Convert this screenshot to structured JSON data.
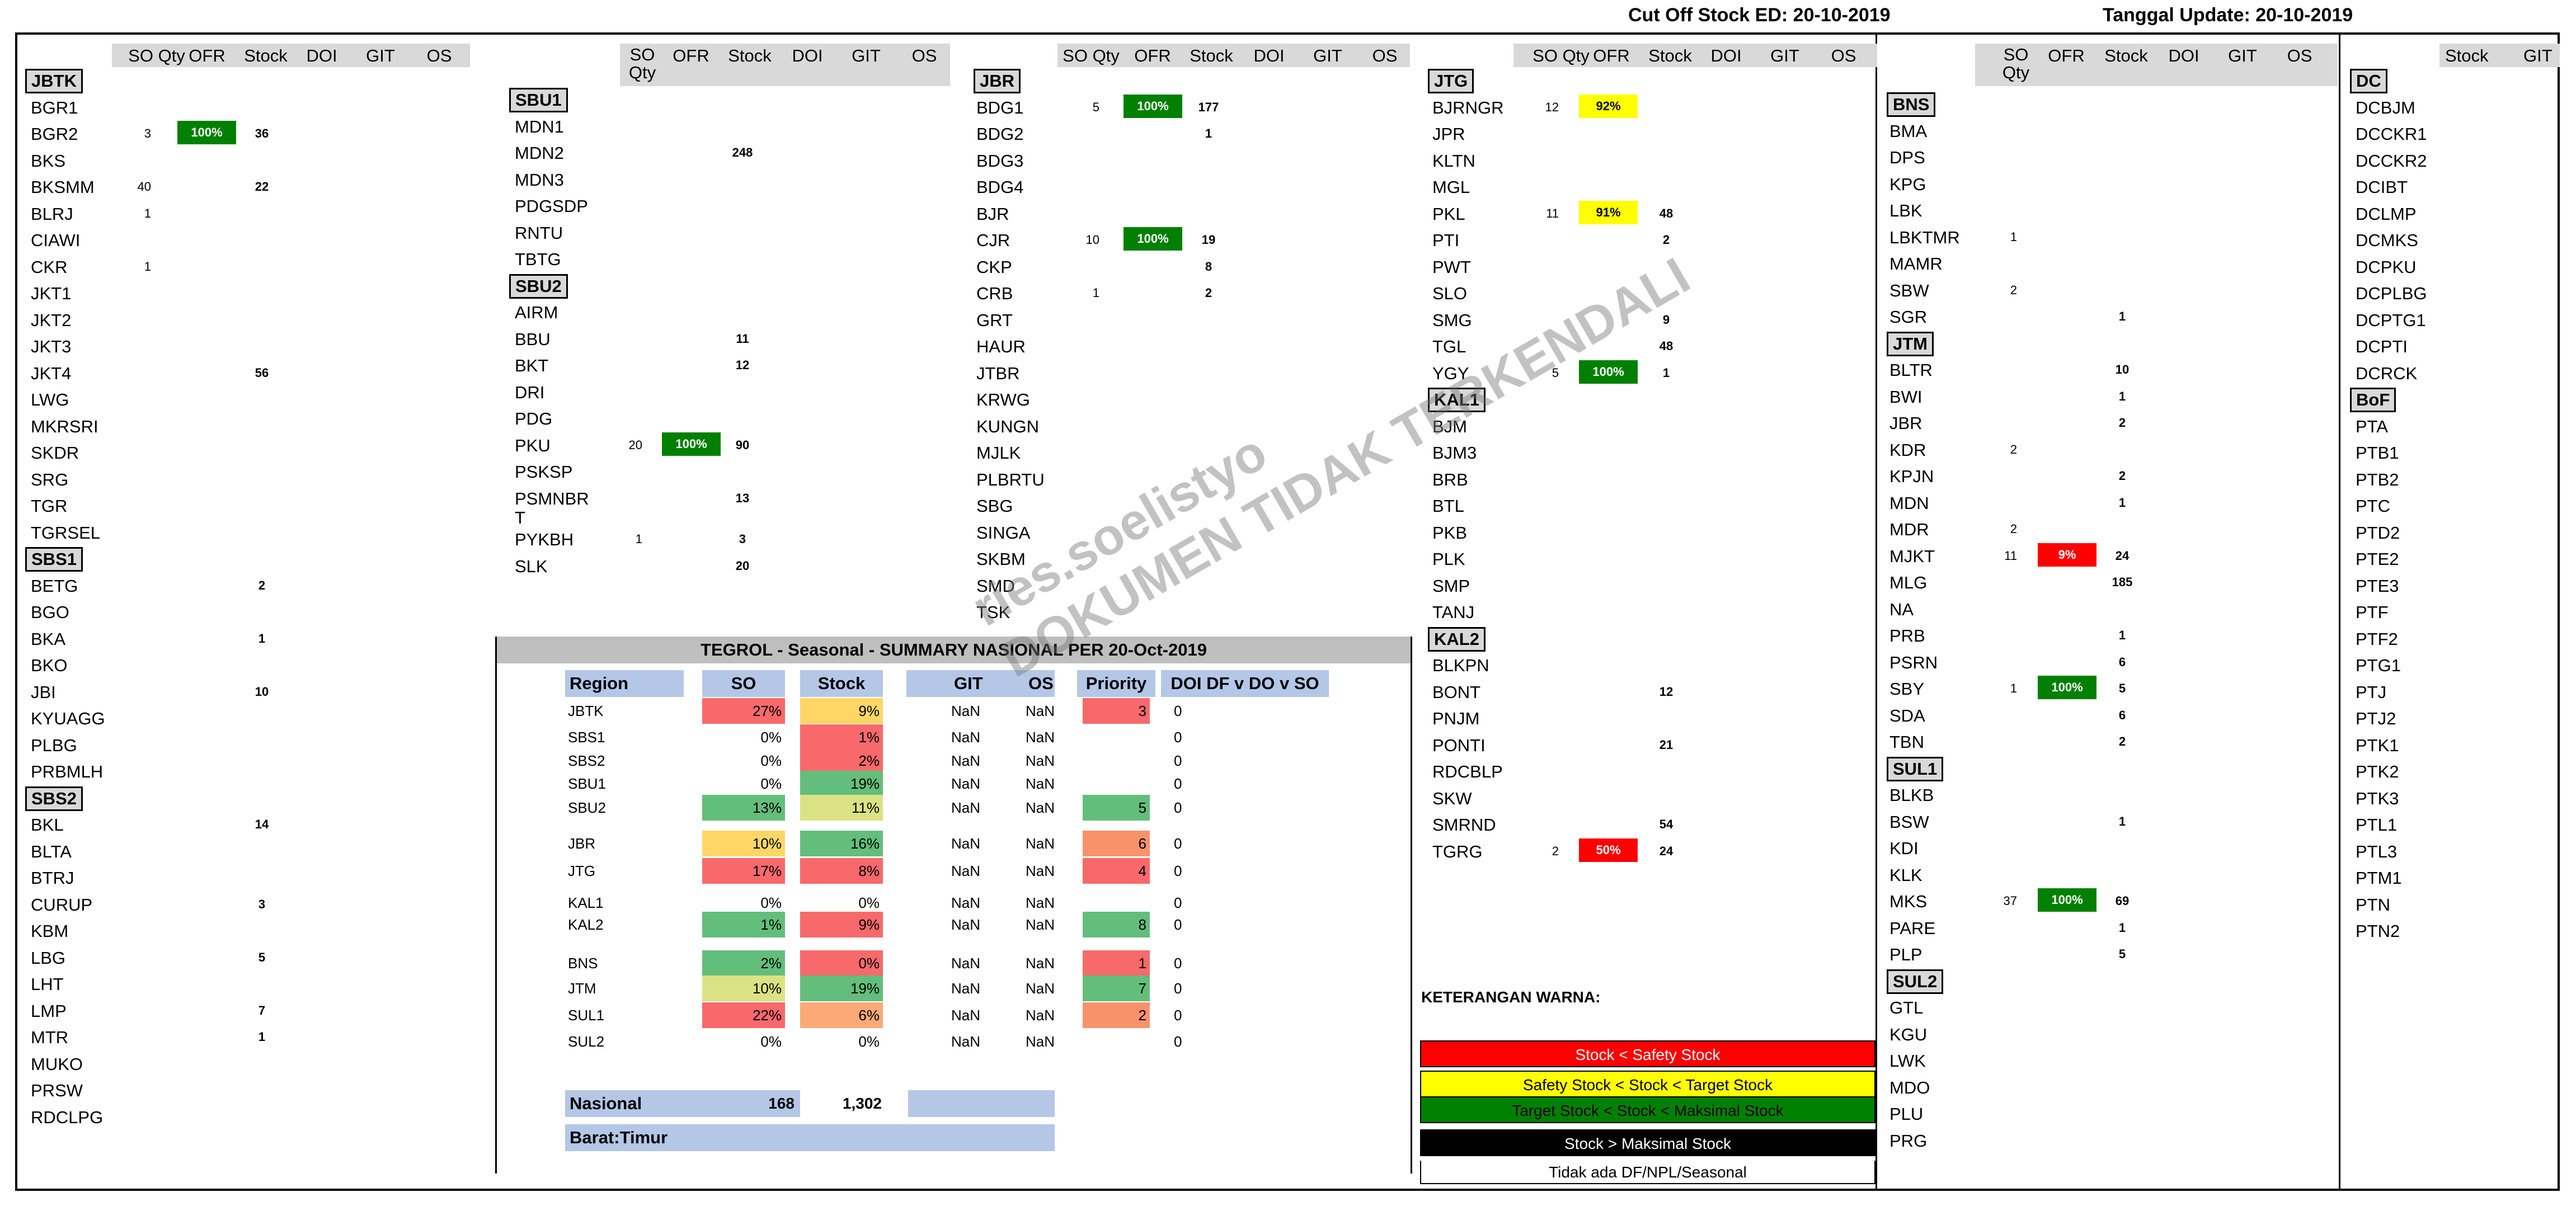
{
  "header": {
    "cutoff": "Cut Off Stock ED: 20-10-2019",
    "update": "Tanggal Update: 20-10-2019"
  },
  "columns": {
    "so_qty": "SO Qty",
    "so": "SO",
    "qty": "Qty",
    "ofr": "OFR",
    "stock": "Stock",
    "doi": "DOI",
    "git": "GIT",
    "os": "OS"
  },
  "colors": {
    "green": "#008000",
    "yellow": "#ffff00",
    "red": "#ff0000",
    "black": "#000000"
  },
  "panel1": {
    "regions": [
      {
        "name": "JBTK",
        "rows": [
          {
            "code": "BGR1"
          },
          {
            "code": "BGR2",
            "so": "3",
            "ofr": "100%",
            "ofr_color": "green",
            "stock": "36"
          },
          {
            "code": "BKS"
          },
          {
            "code": "BKSMM",
            "so": "40",
            "stock": "22"
          },
          {
            "code": "BLRJ",
            "so": "1"
          },
          {
            "code": "CIAWI"
          },
          {
            "code": "CKR",
            "so": "1"
          },
          {
            "code": "JKT1"
          },
          {
            "code": "JKT2"
          },
          {
            "code": "JKT3"
          },
          {
            "code": "JKT4",
            "stock": "56"
          },
          {
            "code": "LWG"
          },
          {
            "code": "MKRSRI"
          },
          {
            "code": "SKDR"
          },
          {
            "code": "SRG"
          },
          {
            "code": "TGR"
          },
          {
            "code": "TGRSEL"
          }
        ]
      },
      {
        "name": "SBS1",
        "rows": [
          {
            "code": "BETG",
            "stock": "2"
          },
          {
            "code": "BGO"
          },
          {
            "code": "BKA",
            "stock": "1"
          },
          {
            "code": "BKO"
          },
          {
            "code": "JBI",
            "stock": "10"
          },
          {
            "code": "KYUAGG"
          },
          {
            "code": "PLBG"
          },
          {
            "code": "PRBMLH"
          }
        ]
      },
      {
        "name": "SBS2",
        "rows": [
          {
            "code": "BKL",
            "stock": "14"
          },
          {
            "code": "BLTA"
          },
          {
            "code": "BTRJ"
          },
          {
            "code": "CURUP",
            "stock": "3"
          },
          {
            "code": "KBM"
          },
          {
            "code": "LBG",
            "stock": "5"
          },
          {
            "code": "LHT"
          },
          {
            "code": "LMP",
            "stock": "7"
          },
          {
            "code": "MTR",
            "stock": "1"
          },
          {
            "code": "MUKO"
          },
          {
            "code": "PRSW"
          },
          {
            "code": "RDCLPG"
          }
        ]
      }
    ]
  },
  "panel2": {
    "regions": [
      {
        "name": "SBU1",
        "rows": [
          {
            "code": "MDN1"
          },
          {
            "code": "MDN2",
            "stock": "248"
          },
          {
            "code": "MDN3"
          },
          {
            "code": "PDGSDP"
          },
          {
            "code": "RNTU"
          },
          {
            "code": "TBTG"
          }
        ]
      },
      {
        "name": "SBU2",
        "rows": [
          {
            "code": "AIRM"
          },
          {
            "code": "BBU",
            "stock": "11"
          },
          {
            "code": "BKT",
            "stock": "12"
          },
          {
            "code": "DRI"
          },
          {
            "code": "PDG"
          },
          {
            "code": "PKU",
            "so": "20",
            "ofr": "100%",
            "ofr_color": "green",
            "stock": "90"
          },
          {
            "code": "PSKSP"
          },
          {
            "code": "PSMNBR",
            "code2": "T",
            "stock": "13"
          },
          {
            "code": "PYKBH",
            "so": "1",
            "stock": "3"
          },
          {
            "code": "SLK",
            "stock": "20"
          }
        ]
      }
    ]
  },
  "panel3": {
    "regions": [
      {
        "name": "JBR",
        "rows": [
          {
            "code": "BDG1",
            "so": "5",
            "ofr": "100%",
            "ofr_color": "green",
            "stock": "177"
          },
          {
            "code": "BDG2",
            "stock": "1"
          },
          {
            "code": "BDG3"
          },
          {
            "code": "BDG4"
          },
          {
            "code": "BJR"
          },
          {
            "code": "CJR",
            "so": "10",
            "ofr": "100%",
            "ofr_color": "green",
            "stock": "19"
          },
          {
            "code": "CKP",
            "stock": "8"
          },
          {
            "code": "CRB",
            "so": "1",
            "stock": "2"
          },
          {
            "code": "GRT"
          },
          {
            "code": "HAUR"
          },
          {
            "code": "JTBR"
          },
          {
            "code": "KRWG"
          },
          {
            "code": "KUNGN"
          },
          {
            "code": "MJLK"
          },
          {
            "code": "PLBRTU"
          },
          {
            "code": "SBG"
          },
          {
            "code": "SINGA"
          },
          {
            "code": "SKBM"
          },
          {
            "code": "SMD"
          },
          {
            "code": "TSK"
          }
        ]
      }
    ]
  },
  "panel4": {
    "regions": [
      {
        "name": "JTG",
        "rows": [
          {
            "code": "BJRNGR",
            "so": "12",
            "ofr": "92%",
            "ofr_color": "yellow"
          },
          {
            "code": "JPR"
          },
          {
            "code": "KLTN"
          },
          {
            "code": "MGL"
          },
          {
            "code": "PKL",
            "so": "11",
            "ofr": "91%",
            "ofr_color": "yellow",
            "stock": "48"
          },
          {
            "code": "PTI",
            "stock": "2"
          },
          {
            "code": "PWT"
          },
          {
            "code": "SLO"
          },
          {
            "code": "SMG",
            "stock": "9"
          },
          {
            "code": "TGL",
            "stock": "48"
          },
          {
            "code": "YGY",
            "so": "5",
            "ofr": "100%",
            "ofr_color": "green",
            "stock": "1"
          }
        ]
      },
      {
        "name": "KAL1",
        "rows": [
          {
            "code": "BJM"
          },
          {
            "code": "BJM3"
          },
          {
            "code": "BRB"
          },
          {
            "code": "BTL"
          },
          {
            "code": "PKB"
          },
          {
            "code": "PLK"
          },
          {
            "code": "SMP"
          },
          {
            "code": "TANJ"
          }
        ]
      },
      {
        "name": "KAL2",
        "rows": [
          {
            "code": "BLKPN"
          },
          {
            "code": "BONT",
            "stock": "12"
          },
          {
            "code": "PNJM"
          },
          {
            "code": "PONTI",
            "stock": "21"
          },
          {
            "code": "RDCBLP"
          },
          {
            "code": "SKW"
          },
          {
            "code": "SMRND",
            "stock": "54"
          },
          {
            "code": "TGRG",
            "so": "2",
            "ofr": "50%",
            "ofr_color": "red",
            "stock": "24"
          }
        ]
      }
    ]
  },
  "panel5": {
    "regions": [
      {
        "name": "BNS",
        "rows": [
          {
            "code": "BMA"
          },
          {
            "code": "DPS"
          },
          {
            "code": "KPG"
          },
          {
            "code": "LBK"
          },
          {
            "code": "LBKTMR",
            "so": "1"
          },
          {
            "code": "MAMR"
          },
          {
            "code": "SBW",
            "so": "2"
          },
          {
            "code": "SGR",
            "stock": "1"
          }
        ]
      },
      {
        "name": "JTM",
        "rows": [
          {
            "code": "BLTR",
            "stock": "10"
          },
          {
            "code": "BWI",
            "stock": "1"
          },
          {
            "code": "JBR",
            "stock": "2"
          },
          {
            "code": "KDR",
            "so": "2"
          },
          {
            "code": "KPJN",
            "stock": "2"
          },
          {
            "code": "MDN",
            "stock": "1"
          },
          {
            "code": "MDR",
            "so": "2"
          },
          {
            "code": "MJKT",
            "so": "11",
            "ofr": "9%",
            "ofr_color": "red",
            "stock": "24"
          },
          {
            "code": "MLG",
            "stock": "185"
          },
          {
            "code": "NA"
          },
          {
            "code": "PRB",
            "stock": "1"
          },
          {
            "code": "PSRN",
            "stock": "6"
          },
          {
            "code": "SBY",
            "so": "1",
            "ofr": "100%",
            "ofr_color": "green",
            "stock": "5"
          },
          {
            "code": "SDA",
            "stock": "6"
          },
          {
            "code": "TBN",
            "stock": "2"
          }
        ]
      },
      {
        "name": "SUL1",
        "rows": [
          {
            "code": "BLKB"
          },
          {
            "code": "BSW",
            "stock": "1"
          },
          {
            "code": "KDI"
          },
          {
            "code": "KLK"
          },
          {
            "code": "MKS",
            "so": "37",
            "ofr": "100%",
            "ofr_color": "green",
            "stock": "69"
          },
          {
            "code": "PARE",
            "stock": "1"
          },
          {
            "code": "PLP",
            "stock": "5"
          }
        ]
      },
      {
        "name": "SUL2",
        "rows": [
          {
            "code": "GTL"
          },
          {
            "code": "KGU"
          },
          {
            "code": "LWK"
          },
          {
            "code": "MDO"
          },
          {
            "code": "PLU"
          },
          {
            "code": "PRG"
          }
        ]
      }
    ]
  },
  "panel6": {
    "regions": [
      {
        "name": "DC",
        "rows": [
          {
            "code": "DCBJM"
          },
          {
            "code": "DCCKR1"
          },
          {
            "code": "DCCKR2"
          },
          {
            "code": "DCIBT"
          },
          {
            "code": "DCLMP"
          },
          {
            "code": "DCMKS"
          },
          {
            "code": "DCPKU"
          },
          {
            "code": "DCPLBG"
          },
          {
            "code": "DCPTG1"
          },
          {
            "code": "DCPTI"
          },
          {
            "code": "DCRCK"
          }
        ]
      },
      {
        "name": "BoF",
        "rows": [
          {
            "code": "PTA"
          },
          {
            "code": "PTB1"
          },
          {
            "code": "PTB2"
          },
          {
            "code": "PTC"
          },
          {
            "code": "PTD2"
          },
          {
            "code": "PTE2"
          },
          {
            "code": "PTE3"
          },
          {
            "code": "PTF"
          },
          {
            "code": "PTF2"
          },
          {
            "code": "PTG1"
          },
          {
            "code": "PTJ"
          },
          {
            "code": "PTJ2"
          },
          {
            "code": "PTK1"
          },
          {
            "code": "PTK2"
          },
          {
            "code": "PTK3"
          },
          {
            "code": "PTL1"
          },
          {
            "code": "PTL3"
          },
          {
            "code": "PTM1"
          },
          {
            "code": "PTN"
          },
          {
            "code": "PTN2"
          }
        ]
      }
    ]
  },
  "summary": {
    "title": "TEGROL - Seasonal - SUMMARY NASIONAL PER 20-Oct-2019",
    "headers": {
      "region": "Region",
      "so": "SO",
      "stock": "Stock",
      "git": "GIT",
      "os": "OS",
      "priority": "Priority",
      "doi": "DOI DF v DO v SO"
    },
    "rows": [
      {
        "region": "JBTK",
        "so": "27%",
        "so_c": "#f8696b",
        "stock": "9%",
        "stock_c": "#ffd666",
        "git": "NaN",
        "os": "NaN",
        "priority": "3",
        "pr_c": "#f8696b",
        "doi": "0"
      },
      {
        "region": "SBS1",
        "so": "0%",
        "so_c": "",
        "stock": "1%",
        "stock_c": "#f8696b",
        "git": "NaN",
        "os": "NaN",
        "priority": "",
        "pr_c": "",
        "doi": "0"
      },
      {
        "region": "SBS2",
        "so": "0%",
        "so_c": "",
        "stock": "2%",
        "stock_c": "#f8696b",
        "git": "NaN",
        "os": "NaN",
        "priority": "",
        "pr_c": "",
        "doi": "0"
      },
      {
        "region": "SBU1",
        "so": "0%",
        "so_c": "",
        "stock": "19%",
        "stock_c": "#63be7b",
        "git": "NaN",
        "os": "NaN",
        "priority": "",
        "pr_c": "",
        "doi": "0"
      },
      {
        "region": "SBU2",
        "so": "13%",
        "so_c": "#63be7b",
        "stock": "11%",
        "stock_c": "#dbe283",
        "git": "NaN",
        "os": "NaN",
        "priority": "5",
        "pr_c": "#63be7b",
        "doi": "0"
      },
      {
        "region": "JBR",
        "so": "10%",
        "so_c": "#ffd666",
        "stock": "16%",
        "stock_c": "#63be7b",
        "git": "NaN",
        "os": "NaN",
        "priority": "6",
        "pr_c": "#f8926b",
        "doi": "0"
      },
      {
        "region": "JTG",
        "so": "17%",
        "so_c": "#f8696b",
        "stock": "8%",
        "stock_c": "#f8696b",
        "git": "NaN",
        "os": "NaN",
        "priority": "4",
        "pr_c": "#f8696b",
        "doi": "0"
      },
      {
        "region": "KAL1",
        "so": "0%",
        "so_c": "",
        "stock": "0%",
        "stock_c": "",
        "git": "NaN",
        "os": "NaN",
        "priority": "",
        "pr_c": "",
        "doi": "0"
      },
      {
        "region": "KAL2",
        "so": "1%",
        "so_c": "#63be7b",
        "stock": "9%",
        "stock_c": "#f8696b",
        "git": "NaN",
        "os": "NaN",
        "priority": "8",
        "pr_c": "#63be7b",
        "doi": "0"
      },
      {
        "region": "BNS",
        "so": "2%",
        "so_c": "#63be7b",
        "stock": "0%",
        "stock_c": "#f8696b",
        "git": "NaN",
        "os": "NaN",
        "priority": "1",
        "pr_c": "#f8696b",
        "doi": "0"
      },
      {
        "region": "JTM",
        "so": "10%",
        "so_c": "#dbe283",
        "stock": "19%",
        "stock_c": "#63be7b",
        "git": "NaN",
        "os": "NaN",
        "priority": "7",
        "pr_c": "#63be7b",
        "doi": "0"
      },
      {
        "region": "SUL1",
        "so": "22%",
        "so_c": "#f8696b",
        "stock": "6%",
        "stock_c": "#fbaa77",
        "git": "NaN",
        "os": "NaN",
        "priority": "2",
        "pr_c": "#f8926b",
        "doi": "0"
      },
      {
        "region": "SUL2",
        "so": "0%",
        "so_c": "",
        "stock": "0%",
        "stock_c": "",
        "git": "NaN",
        "os": "NaN",
        "priority": "",
        "pr_c": "",
        "doi": "0"
      }
    ],
    "nasional": {
      "label": "Nasional",
      "so": "168",
      "stock": "1,302"
    },
    "barat": {
      "label": "Barat:Timur"
    }
  },
  "legend": {
    "title": "KETERANGAN WARNA:",
    "items": [
      {
        "text": "Stock < Safety Stock",
        "bg": "#ff0000",
        "fg": "#ffffff"
      },
      {
        "text": "Safety Stock < Stock < Target Stock",
        "bg": "#ffff00",
        "fg": "#000000"
      },
      {
        "text": "Target Stock < Stock < Maksimal Stock",
        "bg": "#008000",
        "fg": "#000000"
      },
      {
        "text": "Stock > Maksimal Stock",
        "bg": "#000000",
        "fg": "#ffffff"
      },
      {
        "text": "Tidak ada DF/NPL/Seasonal",
        "bg": "#ffffff",
        "fg": "#000000"
      }
    ]
  },
  "watermark": {
    "line1": "ries.soelistyo",
    "line2": "DOKUMEN TIDAK TERKENDALI"
  }
}
